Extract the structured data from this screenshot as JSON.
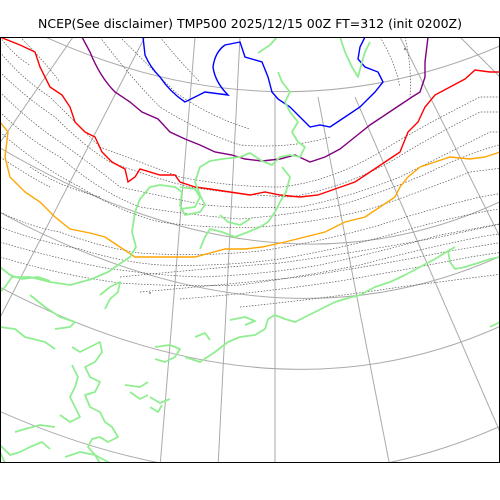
{
  "title": "NCEP(See disclaimer) TMP500 2025/12/15 00Z FT=312 (init 0200Z)",
  "colors": {
    "graticule": "#aaaaaa",
    "contour_dotted": "#555555",
    "coast": "#90ee90",
    "blue_isotherm": "#0000ff",
    "purple_isotherm": "#800080",
    "red_isotherm": "#ff0000",
    "orange_isotherm": "#ffa500",
    "frame": "#000000"
  },
  "map": {
    "type": "polar-stereographic contour map",
    "variable": "TMP500",
    "highlighted_isotherms": [
      "blue",
      "purple",
      "red",
      "orange"
    ]
  }
}
